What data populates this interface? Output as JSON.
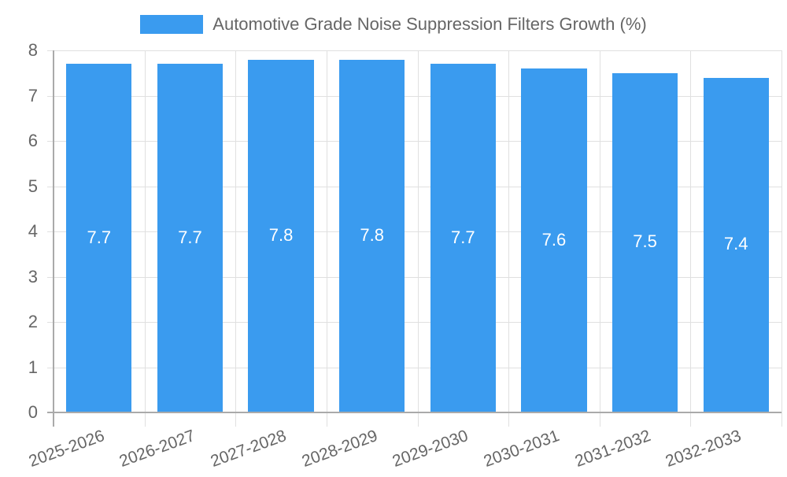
{
  "chart_data": {
    "type": "bar",
    "title": "",
    "xlabel": "",
    "ylabel": "",
    "categories": [
      "2025-2026",
      "2026-2027",
      "2027-2028",
      "2028-2029",
      "2029-2030",
      "2030-2031",
      "2031-2032",
      "2032-2033"
    ],
    "series": [
      {
        "name": "Automotive Grade Noise Suppression Filters Growth (%)",
        "values": [
          7.7,
          7.7,
          7.8,
          7.8,
          7.7,
          7.6,
          7.5,
          7.4
        ],
        "color": "#3a9bef"
      }
    ],
    "ylim": [
      0,
      8
    ],
    "yticks": [
      0,
      1,
      2,
      3,
      4,
      5,
      6,
      7,
      8
    ],
    "grid": true,
    "legend_position": "top",
    "data_labels": true
  },
  "legend": {
    "label": "Automotive Grade Noise Suppression Filters Growth (%)",
    "color": "#3a9bef"
  }
}
